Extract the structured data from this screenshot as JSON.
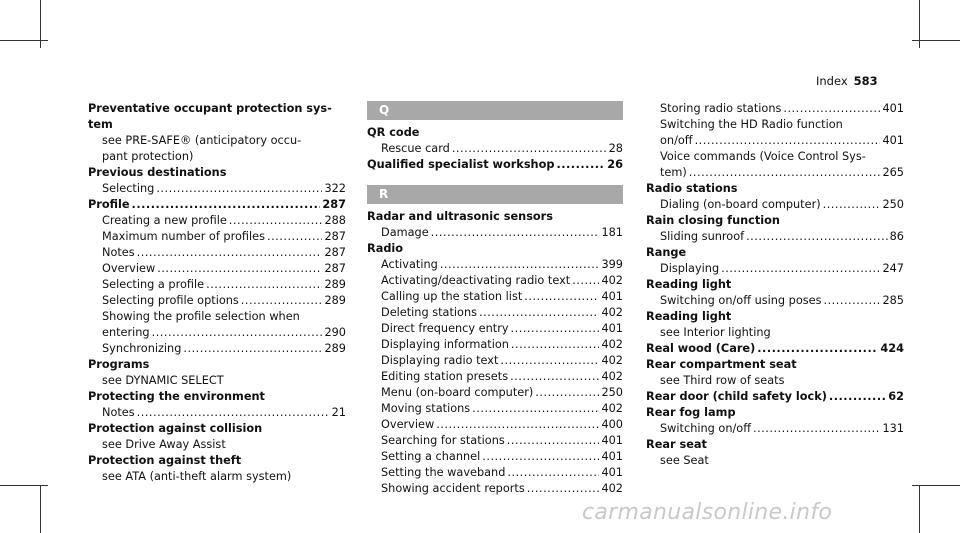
{
  "header": {
    "label": "Index",
    "page": "583"
  },
  "columns": [
    {
      "entries": [
        {
          "type": "entry",
          "title": "Preventative occupant protection system",
          "lines": [
            "Preventative occupant protection sys-",
            "tem"
          ],
          "subs": [
            {
              "lines": [
                "see PRE-SAFE® (anticipatory occu-",
                "pant protection)"
              ]
            }
          ]
        },
        {
          "type": "entry",
          "title": "Previous destinations",
          "subs": [
            {
              "text": "Selecting",
              "page": "322"
            }
          ]
        },
        {
          "type": "entry",
          "title": "Profile",
          "page": "287",
          "subs": [
            {
              "text": "Creating a new profile",
              "page": "288"
            },
            {
              "text": "Maximum number of profiles",
              "page": "287"
            },
            {
              "text": "Notes",
              "page": "287"
            },
            {
              "text": "Overview",
              "page": "287"
            },
            {
              "text": "Selecting a profile",
              "page": "289"
            },
            {
              "text": "Selecting profile options",
              "page": "289"
            },
            {
              "lines": [
                "Showing the profile selection when"
              ],
              "text": "entering",
              "page": "290"
            },
            {
              "text": "Synchronizing",
              "page": "289"
            }
          ]
        },
        {
          "type": "entry",
          "title": "Programs",
          "subs": [
            {
              "lines": [
                "see DYNAMIC SELECT"
              ]
            }
          ]
        },
        {
          "type": "entry",
          "title": "Protecting the environment",
          "subs": [
            {
              "text": "Notes",
              "page": "21"
            }
          ]
        },
        {
          "type": "entry",
          "title": "Protection against collision",
          "subs": [
            {
              "lines": [
                "see Drive Away Assist"
              ]
            }
          ]
        },
        {
          "type": "entry",
          "title": "Protection against theft",
          "subs": [
            {
              "lines": [
                "see ATA (anti-theft alarm system)"
              ]
            }
          ]
        }
      ]
    },
    {
      "entries": [
        {
          "type": "letter",
          "title": "Q"
        },
        {
          "type": "entry",
          "title": "QR code",
          "subs": [
            {
              "text": "Rescue card",
              "page": "28"
            }
          ]
        },
        {
          "type": "entry",
          "title": "Qualified specialist workshop",
          "page": "26",
          "subs": []
        },
        {
          "type": "gap"
        },
        {
          "type": "letter",
          "title": "R"
        },
        {
          "type": "entry",
          "title": "Radar and ultrasonic sensors",
          "subs": [
            {
              "text": "Damage",
              "page": "181"
            }
          ]
        },
        {
          "type": "entry",
          "title": "Radio",
          "subs": [
            {
              "text": "Activating",
              "page": "399"
            },
            {
              "text": "Activating/deactivating radio text",
              "page": "402"
            },
            {
              "text": "Calling up the station list",
              "page": "401"
            },
            {
              "text": "Deleting stations",
              "page": "402"
            },
            {
              "text": "Direct frequency entry",
              "page": "401"
            },
            {
              "text": "Displaying information",
              "page": "402"
            },
            {
              "text": "Displaying radio text",
              "page": "402"
            },
            {
              "text": "Editing station presets",
              "page": "402"
            },
            {
              "text": "Menu (on-board computer)",
              "page": "250"
            },
            {
              "text": "Moving stations",
              "page": "402"
            },
            {
              "text": "Overview",
              "page": "400"
            },
            {
              "text": "Searching for stations",
              "page": "401"
            },
            {
              "text": "Setting a channel",
              "page": "401"
            },
            {
              "text": "Setting the waveband",
              "page": "401"
            },
            {
              "text": "Showing accident reports",
              "page": "402"
            }
          ]
        }
      ]
    },
    {
      "entries": [
        {
          "type": "cont",
          "subs": [
            {
              "text": "Storing radio stations",
              "page": "401"
            },
            {
              "lines": [
                "Switching the HD Radio function"
              ],
              "text": "on/off",
              "page": "401"
            },
            {
              "lines": [
                "Voice commands (Voice Control Sys-"
              ],
              "text": "tem)",
              "page": "265"
            }
          ]
        },
        {
          "type": "entry",
          "title": "Radio stations",
          "subs": [
            {
              "text": "Dialing (on-board computer)",
              "page": "250"
            }
          ]
        },
        {
          "type": "entry",
          "title": "Rain closing function",
          "subs": [
            {
              "text": "Sliding sunroof",
              "page": "86"
            }
          ]
        },
        {
          "type": "entry",
          "title": "Range",
          "subs": [
            {
              "text": "Displaying",
              "page": "247"
            }
          ]
        },
        {
          "type": "entry",
          "title": "Reading light",
          "subs": [
            {
              "text": "Switching on/off using poses",
              "page": "285"
            }
          ]
        },
        {
          "type": "entry",
          "title": "Reading light",
          "subs": [
            {
              "lines": [
                "see Interior lighting"
              ]
            }
          ]
        },
        {
          "type": "entry",
          "title": "Real wood (Care)",
          "page": "424",
          "subs": []
        },
        {
          "type": "entry",
          "title": "Rear compartment seat",
          "subs": [
            {
              "lines": [
                "see Third row of seats"
              ]
            }
          ]
        },
        {
          "type": "entry",
          "title": "Rear door (child safety lock)",
          "page": "62",
          "subs": []
        },
        {
          "type": "entry",
          "title": "Rear fog lamp",
          "subs": [
            {
              "text": "Switching on/off",
              "page": "131"
            }
          ]
        },
        {
          "type": "entry",
          "title": "Rear seat",
          "subs": [
            {
              "lines": [
                "see Seat"
              ]
            }
          ]
        }
      ]
    }
  ],
  "watermark": "carmanualsonline.info"
}
